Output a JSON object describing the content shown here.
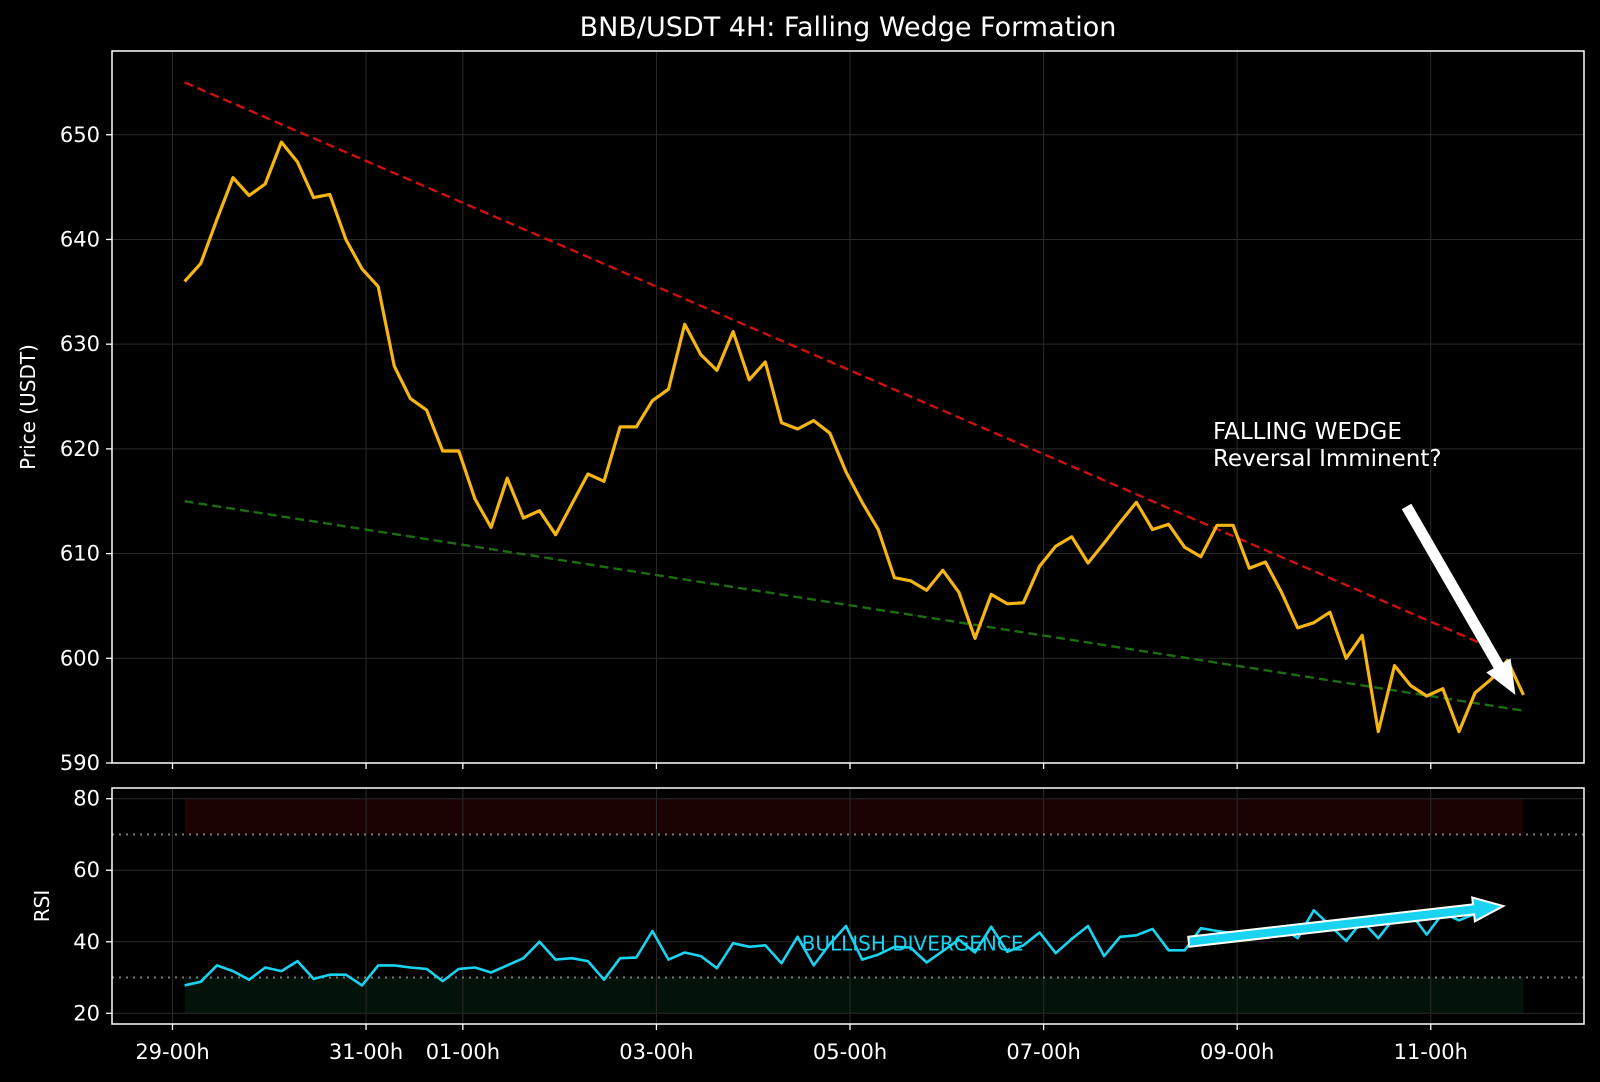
{
  "colors": {
    "background": "#000000",
    "price_line": "#f5b512",
    "resistance": "#cc1111",
    "support": "#1f6b14",
    "rsi_line": "#19d3f0",
    "arrow_main": "#ffffff",
    "overbought_band": "#1c0303",
    "oversold_band": "#03130a",
    "grid": "#2b2b2b",
    "frame": "#ffffff",
    "level_line": "#7a7a7a"
  },
  "chart_data": [
    {
      "type": "line",
      "title": "BNB/USDT 4H: Falling Wedge Formation",
      "ylabel": "Price (USDT)",
      "ylim": [
        590,
        658
      ],
      "yticks": [
        "590",
        "600",
        "610",
        "620",
        "630",
        "640",
        "650"
      ],
      "x_ticks": [
        {
          "label": "29-00h",
          "x": 0
        },
        {
          "label": "31-00h",
          "x": 48
        },
        {
          "label": "01-00h",
          "x": 72
        },
        {
          "label": "03-00h",
          "x": 120
        },
        {
          "label": "05-00h",
          "x": 168
        },
        {
          "label": "07-00h",
          "x": 216
        },
        {
          "label": "09-00h",
          "x": 264
        },
        {
          "label": "11-00h",
          "x": 312
        }
      ],
      "xlim": [
        -15,
        350
      ],
      "grid": true,
      "series": [
        {
          "x_start": 3,
          "x_step": 4,
          "values": [
            636,
            637.7,
            641.9,
            645.9,
            644.2,
            645.3,
            649.3,
            647.4,
            644,
            644.3,
            640,
            637.2,
            635.5,
            627.9,
            624.8,
            623.7,
            619.8,
            619.8,
            615.2,
            612.5,
            617.2,
            613.4,
            614.1,
            611.8,
            614.7,
            617.6,
            616.9,
            622.1,
            622.1,
            624.6,
            625.7,
            631.9,
            629,
            627.5,
            631.2,
            626.6,
            628.3,
            622.5,
            621.9,
            622.7,
            621.5,
            617.8,
            614.9,
            612.3,
            607.7,
            607.4,
            606.5,
            608.4,
            606.3,
            601.9,
            606.1,
            605.2,
            605.3,
            608.8,
            610.7,
            611.6,
            609.1,
            611,
            613,
            614.9,
            612.3,
            612.8,
            610.6,
            609.7,
            612.7,
            612.7,
            608.6,
            609.2,
            606.3,
            602.9,
            603.4,
            604.4,
            600,
            602.2,
            593,
            599.3,
            597.4,
            596.4,
            597.1,
            593,
            596.7,
            598,
            599.8,
            596.5
          ]
        },
        {
          "name_hidden": "resistance",
          "x": [
            3,
            327
          ],
          "values": [
            655,
            601
          ]
        },
        {
          "name_hidden": "support",
          "x": [
            3,
            335
          ],
          "values": [
            615,
            595
          ]
        }
      ],
      "annotations": [
        {
          "text_lines": [
            "FALLING WEDGE",
            "Reversal Imminent?"
          ],
          "text_x": 258,
          "text_y": 620,
          "arrow_from": [
            306,
            614.5
          ],
          "arrow_to": [
            333,
            596.5
          ]
        }
      ]
    },
    {
      "type": "line",
      "ylabel": "RSI",
      "ylim": [
        17,
        83
      ],
      "yticks": [
        "20",
        "40",
        "60",
        "80"
      ],
      "levels": [
        70,
        30
      ],
      "bands": [
        [
          70,
          80
        ],
        [
          20,
          30
        ]
      ],
      "band_x": [
        3,
        335
      ],
      "grid": true,
      "series": [
        {
          "x_start": 3,
          "x_step": 4,
          "values": [
            27.8,
            28.8,
            33.4,
            31.8,
            29.4,
            32.8,
            31.8,
            34.6,
            29.6,
            30.8,
            30.8,
            27.8,
            33.4,
            33.4,
            32.8,
            32.4,
            29,
            32.4,
            32.8,
            31.4,
            33.4,
            35.4,
            40,
            35,
            35.4,
            34.6,
            29.4,
            35.4,
            35.6,
            43,
            35,
            37,
            36,
            32.6,
            39.6,
            38.6,
            39,
            34,
            41.4,
            33.4,
            39.4,
            44.4,
            35,
            36.4,
            38.6,
            38.4,
            34.2,
            37.4,
            40.6,
            37,
            44.2,
            37.2,
            39,
            42.6,
            36.8,
            40.8,
            44.4,
            36,
            41.4,
            41.8,
            43.6,
            37.6,
            37.6,
            43.8,
            43,
            42.4,
            40.6,
            43.4,
            44,
            41,
            48.8,
            44.6,
            40.2,
            45.8,
            41,
            46.8,
            48,
            42,
            48,
            46,
            47.8,
            51
          ]
        }
      ],
      "annotations": [
        {
          "text": "BULLISH DIVERGENCE",
          "text_x": 156,
          "text_y": 37.5,
          "arrow_from": [
            252,
            40
          ],
          "arrow_to": [
            330,
            50
          ]
        }
      ]
    }
  ]
}
